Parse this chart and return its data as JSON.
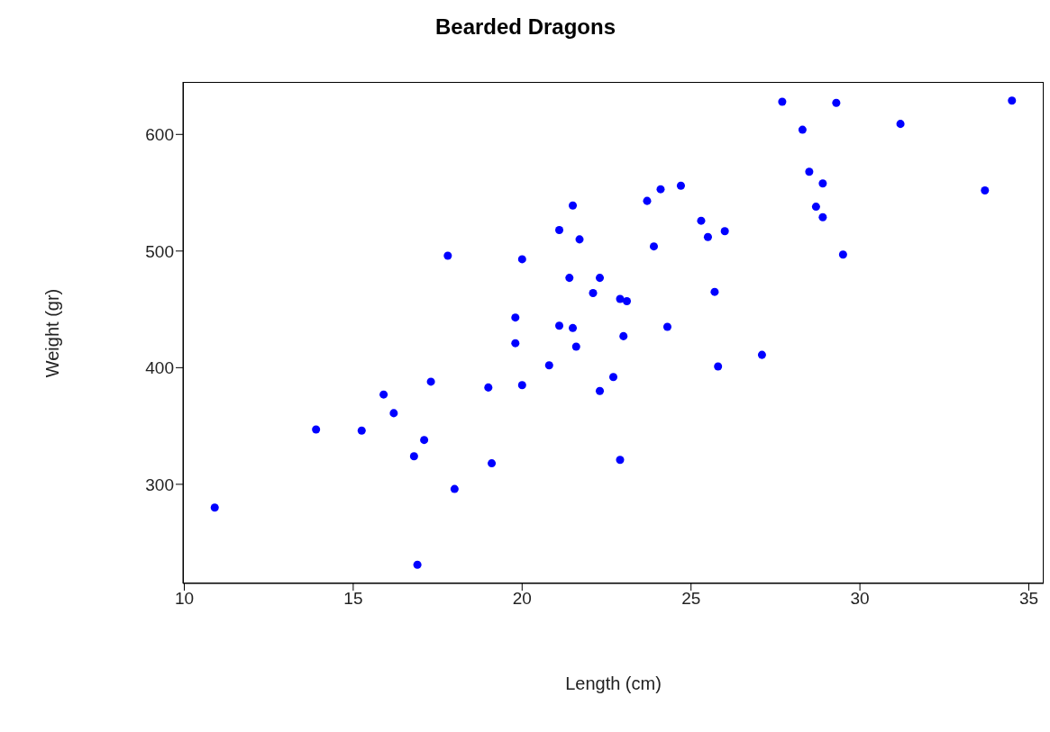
{
  "chart_data": {
    "type": "scatter",
    "title": "Bearded Dragons",
    "xlabel": "Length (cm)",
    "ylabel": "Weight (gr)",
    "x": [
      10.9,
      13.9,
      15.25,
      15.9,
      16.2,
      17.3,
      17.1,
      16.8,
      16.9,
      17.8,
      18.0,
      19.0,
      19.1,
      19.8,
      19.8,
      20.0,
      20.0,
      20.8,
      21.1,
      21.1,
      21.5,
      21.7,
      21.4,
      21.5,
      21.6,
      22.3,
      22.1,
      22.3,
      22.7,
      22.9,
      23.1,
      23.0,
      22.9,
      23.7,
      24.1,
      23.9,
      24.7,
      24.3,
      25.3,
      25.5,
      26.0,
      25.7,
      25.8,
      27.1,
      27.7,
      28.3,
      29.3,
      28.5,
      28.9,
      28.7,
      28.9,
      29.5,
      31.2,
      33.7,
      34.5
    ],
    "values": [
      280,
      347,
      346,
      377,
      361,
      388,
      338,
      324,
      231,
      496,
      296,
      383,
      318,
      443,
      421,
      493,
      385,
      402,
      518,
      436,
      539,
      510,
      477,
      434,
      418,
      477,
      464,
      380,
      392,
      459,
      457,
      427,
      321,
      543,
      553,
      504,
      556,
      435,
      526,
      512,
      517,
      465,
      401,
      411,
      628,
      604,
      627,
      568,
      558,
      538,
      529,
      497,
      609,
      552,
      629
    ],
    "color": "#0000ff",
    "marker": "circle",
    "xlim": [
      9.96,
      35.44
    ],
    "ylim": [
      215,
      645
    ],
    "xticks": [
      10,
      15,
      20,
      25,
      30,
      35
    ],
    "yticks": [
      300,
      400,
      500,
      600
    ],
    "grid": false
  }
}
